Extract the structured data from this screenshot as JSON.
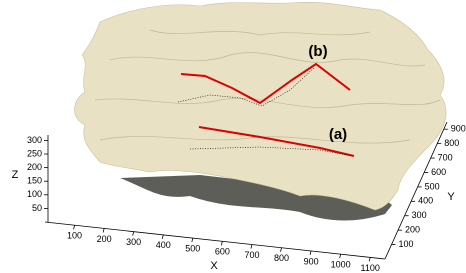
{
  "chart_data": {
    "type": "surface",
    "xlabel": "X",
    "ylabel": "Y",
    "zlabel": "Z",
    "xlim": [
      0,
      1150
    ],
    "ylim": [
      0,
      950
    ],
    "zlim": [
      0,
      320
    ],
    "xticks": [
      100,
      200,
      300,
      400,
      500,
      600,
      700,
      800,
      900,
      1000,
      1100
    ],
    "yticks": [
      100,
      200,
      300,
      400,
      500,
      600,
      700,
      800,
      900
    ],
    "zticks": [
      50,
      100,
      150,
      200,
      250,
      300
    ],
    "annotations": [
      "(a)",
      "(b)"
    ],
    "surface_color": "#e8e1c3"
  }
}
